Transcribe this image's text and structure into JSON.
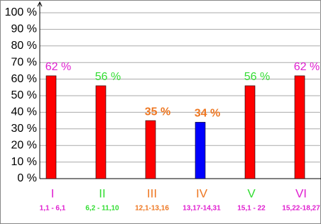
{
  "chart_data": {
    "type": "bar",
    "categories": [
      "I",
      "II",
      "III",
      "IV",
      "V",
      "VI"
    ],
    "sublabels": [
      "1,1 - 6,1",
      "6,2 - 11,10",
      "12,1-13,16",
      "13,17-14,31",
      "15,1 - 22",
      "15,22-18,27"
    ],
    "values": [
      62,
      56,
      35,
      34,
      56,
      62
    ],
    "value_labels": [
      "62 %",
      "56 %",
      "35 %",
      "34 %",
      "56 %",
      "62 %"
    ],
    "colors": [
      "#ff0000",
      "#ff0000",
      "#ff0000",
      "#0000ff",
      "#ff0000",
      "#ff0000"
    ],
    "label_colors": [
      "#e020d0",
      "#33dd33",
      "#ee7722",
      "#ee7722",
      "#33dd33",
      "#e020d0"
    ],
    "sublabel_colors": [
      "#e020d0",
      "#33dd33",
      "#ee7722",
      "#e020d0",
      "#e020d0",
      "#e020d0"
    ],
    "ylim": [
      0,
      100
    ],
    "yticks": [
      {
        "value": 0,
        "label": "0 %"
      },
      {
        "value": 10,
        "label": "10 %"
      },
      {
        "value": 20,
        "label": "20 %"
      },
      {
        "value": 30,
        "label": "30 %"
      },
      {
        "value": 40,
        "label": "40 %"
      },
      {
        "value": 50,
        "label": "50 %"
      },
      {
        "value": 60,
        "label": "60 %"
      },
      {
        "value": 70,
        "label": "70 %"
      },
      {
        "value": 80,
        "label": "80 %"
      },
      {
        "value": 90,
        "label": "90 %"
      },
      {
        "value": 100,
        "label": "100 %"
      }
    ],
    "grid": true
  }
}
